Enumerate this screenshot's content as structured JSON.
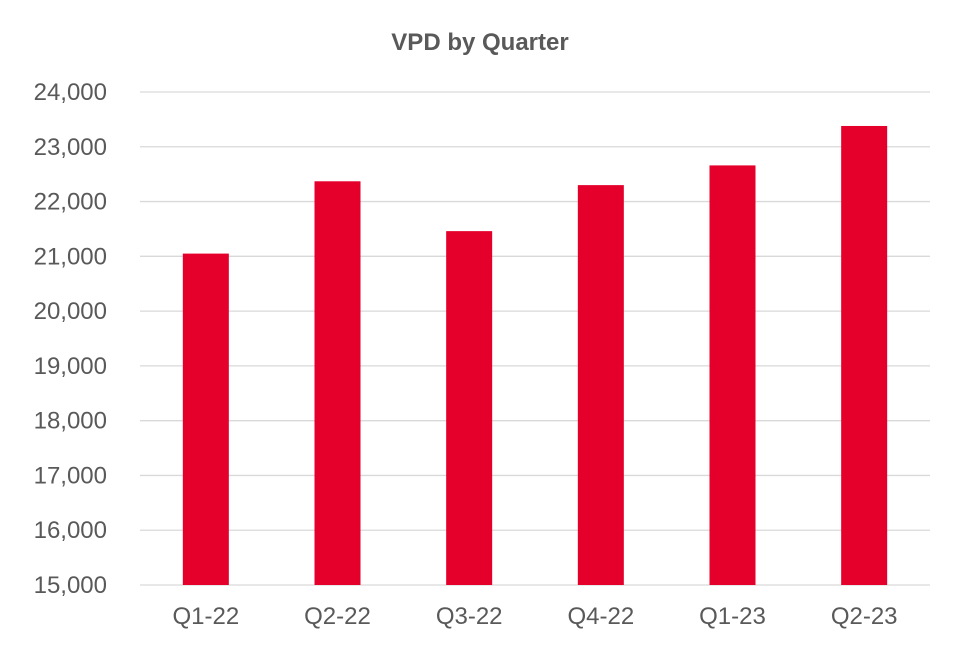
{
  "chart_data": {
    "type": "bar",
    "title": "VPD by Quarter",
    "xlabel": "",
    "ylabel": "",
    "categories": [
      "Q1-22",
      "Q2-22",
      "Q3-22",
      "Q4-22",
      "Q1-23",
      "Q2-23"
    ],
    "values": [
      21050,
      22370,
      21460,
      22300,
      22660,
      23380
    ],
    "ylim": [
      15000,
      24000
    ],
    "yticks": [
      15000,
      16000,
      17000,
      18000,
      19000,
      20000,
      21000,
      22000,
      23000,
      24000
    ],
    "ytick_labels": [
      "15,000",
      "16,000",
      "17,000",
      "18,000",
      "19,000",
      "20,000",
      "21,000",
      "22,000",
      "23,000",
      "24,000"
    ],
    "grid": true,
    "legend": "none",
    "colors": {
      "bar": "#E4002B",
      "grid": "#d9d9d9",
      "text": "#595959"
    }
  }
}
